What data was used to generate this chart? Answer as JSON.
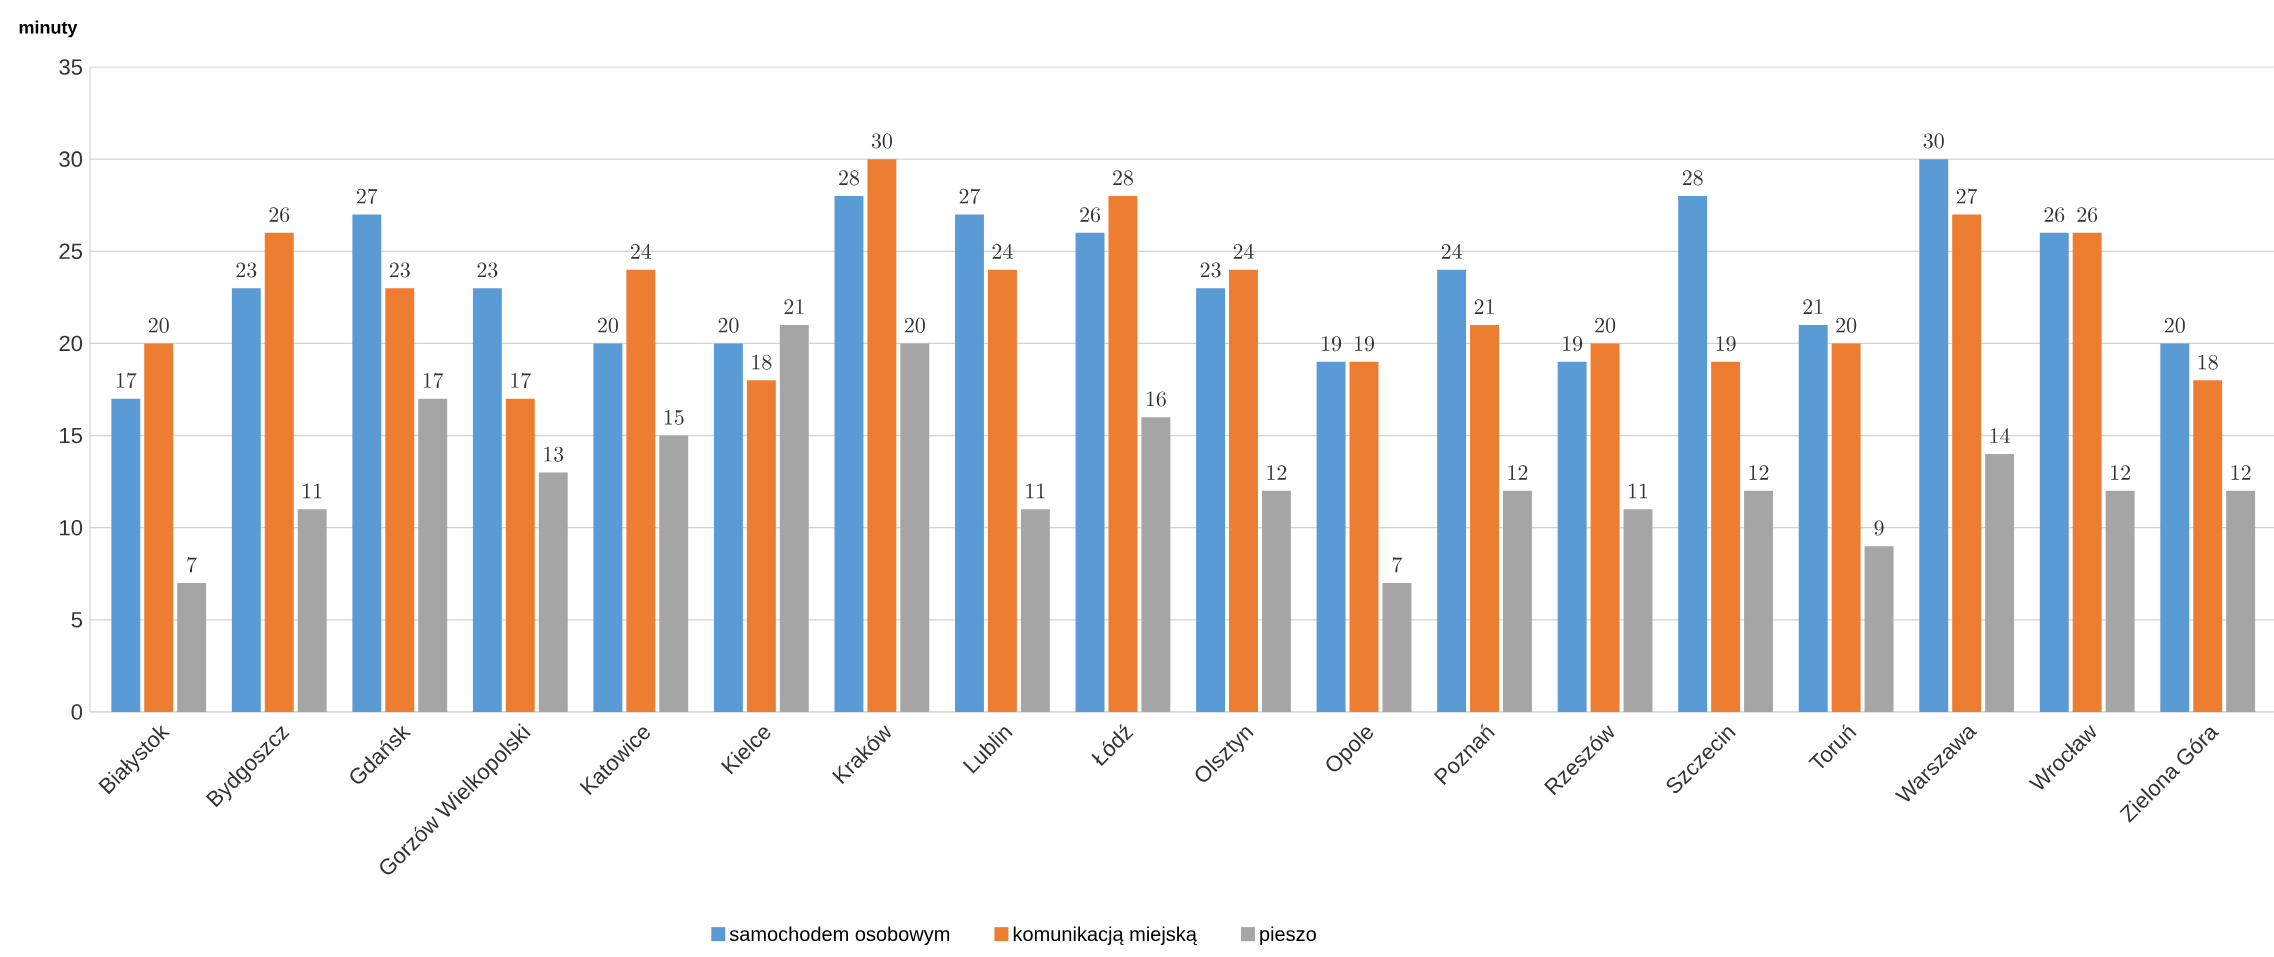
{
  "chart_data": {
    "type": "bar",
    "ylabel": "minuty",
    "categories": [
      "Białystok",
      "Bydgoszcz",
      "Gdańsk",
      "Gorzów Wielkopolski",
      "Katowice",
      "Kielce",
      "Kraków",
      "Lublin",
      "Łódź",
      "Olsztyn",
      "Opole",
      "Poznań",
      "Rzeszów",
      "Szczecin",
      "Toruń",
      "Warszawa",
      "Wrocław",
      "Zielona Góra"
    ],
    "series": [
      {
        "name": "samochodem osobowym",
        "color": "#5b9bd5",
        "values": [
          17,
          23,
          27,
          23,
          20,
          20,
          28,
          27,
          26,
          23,
          19,
          24,
          19,
          28,
          21,
          30,
          26,
          20
        ]
      },
      {
        "name": "komunikacją miejską",
        "color": "#ed7d31",
        "values": [
          20,
          26,
          23,
          17,
          24,
          18,
          30,
          24,
          28,
          24,
          19,
          21,
          20,
          19,
          20,
          27,
          26,
          18
        ]
      },
      {
        "name": "pieszo",
        "color": "#a5a5a5",
        "values": [
          7,
          11,
          17,
          13,
          15,
          21,
          20,
          11,
          16,
          12,
          7,
          12,
          11,
          12,
          9,
          14,
          12,
          12
        ]
      }
    ],
    "ylim": [
      0,
      35
    ],
    "yticks": [
      0,
      5,
      10,
      15,
      20,
      25,
      30,
      35
    ],
    "grid": "y",
    "legend": "bottom",
    "data_labels": true
  }
}
